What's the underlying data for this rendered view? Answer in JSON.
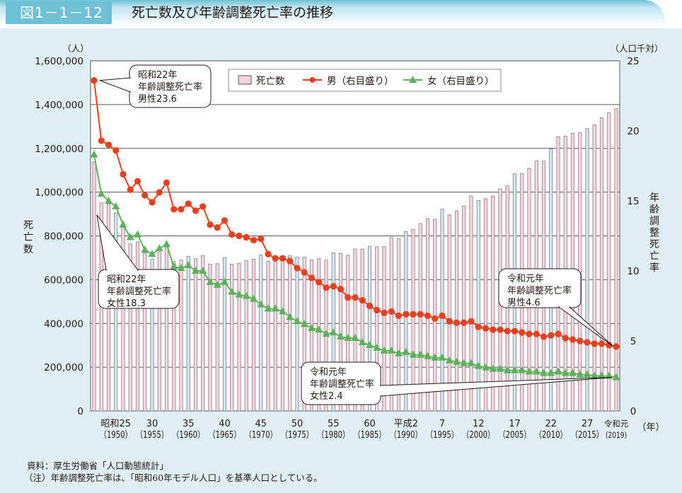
{
  "header": {
    "figure_number": "図1－1－12",
    "title": "死亡数及び年齢調整死亡率の推移"
  },
  "notes": {
    "source": "資料：厚生労働省「人口動態統計」",
    "note": "（注）年齢調整死亡率は、「昭和60年モデル人口」を基準人口としている。"
  },
  "colors": {
    "bar_fill": "#f8d3e0",
    "bar_fill_5yr": "#cfe5f0",
    "bar_stroke": "#8c7f86",
    "male": "#e8401c",
    "female": "#5cb25a",
    "panel": "#deeef3",
    "accent": "#6fbfd6"
  },
  "chart_data": {
    "type": "bar+line",
    "title": "死亡数及び年齢調整死亡率の推移",
    "left_axis": {
      "unit_label": "（人）",
      "label": "死亡数",
      "range": [
        0,
        1600000
      ],
      "ticks": [
        0,
        200000,
        400000,
        600000,
        800000,
        1000000,
        1200000,
        1400000,
        1600000
      ],
      "tick_labels": [
        "0",
        "200,000",
        "400,000",
        "600,000",
        "800,000",
        "1,000,000",
        "1,200,000",
        "1,400,000",
        "1,600,000"
      ]
    },
    "right_axis": {
      "unit_label": "（人口千対）",
      "label": "年齢調整死亡率",
      "range": [
        0,
        25
      ],
      "ticks": [
        0,
        5,
        10,
        15,
        20,
        25
      ],
      "tick_labels": [
        "0",
        "5",
        "10",
        "15",
        "20",
        "25"
      ]
    },
    "x_axis": {
      "unit_label": "（年）",
      "range": [
        1947,
        2019
      ],
      "tick_years": [
        1950,
        1955,
        1960,
        1965,
        1970,
        1975,
        1980,
        1985,
        1990,
        1995,
        2000,
        2005,
        2010,
        2015,
        2019
      ],
      "tick_labels_era": [
        "昭和25",
        "30",
        "35",
        "40",
        "45",
        "50",
        "55",
        "60",
        "平成2",
        "7",
        "12",
        "17",
        "22",
        "27",
        "令和元"
      ],
      "tick_labels_year": [
        "（1950）",
        "（1955）",
        "（1960）",
        "（1965）",
        "（1970）",
        "（1975）",
        "（1980）",
        "（1985）",
        "（1990）",
        "（1995）",
        "（2000）",
        "（2005）",
        "（2010）",
        "（2015）",
        "(2019)"
      ]
    },
    "legend": {
      "position": "top-center",
      "items": [
        {
          "label": "死亡数",
          "type": "bar"
        },
        {
          "label": "男（右目盛り）",
          "type": "line-circle"
        },
        {
          "label": "女（右目盛り）",
          "type": "line-triangle"
        }
      ]
    },
    "x": [
      1947,
      1948,
      1949,
      1950,
      1951,
      1952,
      1953,
      1954,
      1955,
      1956,
      1957,
      1958,
      1959,
      1960,
      1961,
      1962,
      1963,
      1964,
      1965,
      1966,
      1967,
      1968,
      1969,
      1970,
      1971,
      1972,
      1973,
      1974,
      1975,
      1976,
      1977,
      1978,
      1979,
      1980,
      1981,
      1982,
      1983,
      1984,
      1985,
      1986,
      1987,
      1988,
      1989,
      1990,
      1991,
      1992,
      1993,
      1994,
      1995,
      1996,
      1997,
      1998,
      1999,
      2000,
      2001,
      2002,
      2003,
      2004,
      2005,
      2006,
      2007,
      2008,
      2009,
      2010,
      2011,
      2012,
      2013,
      2014,
      2015,
      2016,
      2017,
      2018,
      2019
    ],
    "series": [
      {
        "name": "死亡数",
        "axis": "left",
        "values": [
          1138238,
          950610,
          945444,
          904876,
          838998,
          765068,
          772547,
          721491,
          693523,
          724460,
          752445,
          684189,
          689959,
          706599,
          695644,
          710265,
          670770,
          673067,
          700438,
          670342,
          675006,
          686555,
          693787,
          712962,
          684521,
          683751,
          709416,
          710510,
          702275,
          703270,
          690074,
          695821,
          689664,
          722801,
          720262,
          711883,
          740038,
          740247,
          752283,
          750620,
          751172,
          793014,
          788594,
          820305,
          829797,
          856643,
          878532,
          875933,
          922139,
          896211,
          913402,
          936484,
          982031,
          961653,
          970331,
          982379,
          1014951,
          1028602,
          1083796,
          1084451,
          1108334,
          1142407,
          1141865,
          1197012,
          1253066,
          1256359,
          1268436,
          1273004,
          1290444,
          1307748,
          1340567,
          1362470,
          1381093
        ]
      },
      {
        "name": "男（右目盛り）",
        "axis": "right",
        "values": [
          23.6,
          19.3,
          19.0,
          18.6,
          16.9,
          15.8,
          16.4,
          15.4,
          14.9,
          15.6,
          16.3,
          14.4,
          14.4,
          14.8,
          14.3,
          14.6,
          13.3,
          13.1,
          13.6,
          12.6,
          12.5,
          12.4,
          12.2,
          12.3,
          11.2,
          10.9,
          10.9,
          10.7,
          10.2,
          9.9,
          9.5,
          9.2,
          8.8,
          8.9,
          8.7,
          8.1,
          8.1,
          7.9,
          7.5,
          7.2,
          7.0,
          7.1,
          6.8,
          6.9,
          6.9,
          6.9,
          6.8,
          6.6,
          6.8,
          6.4,
          6.3,
          6.3,
          6.4,
          6.0,
          5.9,
          5.8,
          5.8,
          5.7,
          5.7,
          5.6,
          5.5,
          5.5,
          5.3,
          5.4,
          5.5,
          5.2,
          5.1,
          5.0,
          4.9,
          4.8,
          4.8,
          4.7,
          4.6
        ]
      },
      {
        "name": "女（右目盛り）",
        "axis": "right",
        "values": [
          18.3,
          15.5,
          15.0,
          14.6,
          13.3,
          12.4,
          12.6,
          11.5,
          11.2,
          11.6,
          11.9,
          10.3,
          10.2,
          10.4,
          10.0,
          10.0,
          9.2,
          9.0,
          9.2,
          8.5,
          8.3,
          8.2,
          8.0,
          7.6,
          7.3,
          7.3,
          7.1,
          6.7,
          6.4,
          6.2,
          5.9,
          5.8,
          5.5,
          5.6,
          5.3,
          5.2,
          5.2,
          4.9,
          4.7,
          4.5,
          4.3,
          4.3,
          4.1,
          4.2,
          4.0,
          4.0,
          3.9,
          3.8,
          3.8,
          3.6,
          3.5,
          3.4,
          3.4,
          3.2,
          3.1,
          3.0,
          3.0,
          2.9,
          2.9,
          2.9,
          2.8,
          2.8,
          2.7,
          2.7,
          2.8,
          2.7,
          2.7,
          2.6,
          2.6,
          2.5,
          2.5,
          2.5,
          2.4
        ]
      }
    ],
    "annotations": [
      {
        "text": [
          "昭和22年",
          "年齢調整死亡率",
          "男性23.6"
        ],
        "target_series": "男（右目盛り）",
        "target_x": 1947
      },
      {
        "text": [
          "昭和22年",
          "年齢調整死亡率",
          "女性18.3"
        ],
        "target_series": "女（右目盛り）",
        "target_x": 1947
      },
      {
        "text": [
          "令和元年",
          "年齢調整死亡率",
          "男性4.6"
        ],
        "target_series": "男（右目盛り）",
        "target_x": 2019
      },
      {
        "text": [
          "令和元年",
          "年齢調整死亡率",
          "女性2.4"
        ],
        "target_series": "女（右目盛り）",
        "target_x": 2019
      }
    ]
  }
}
